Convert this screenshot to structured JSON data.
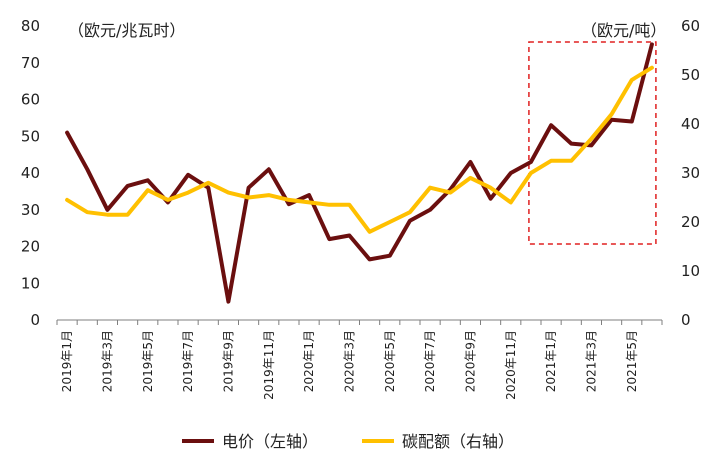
{
  "chart_data": {
    "type": "line",
    "title": "",
    "x": [
      "2019年1月",
      "2019年2月",
      "2019年3月",
      "2019年4月",
      "2019年5月",
      "2019年6月",
      "2019年7月",
      "2019年8月",
      "2019年9月",
      "2019年10月",
      "2019年11月",
      "2019年12月",
      "2020年1月",
      "2020年2月",
      "2020年3月",
      "2020年4月",
      "2020年5月",
      "2020年6月",
      "2020年7月",
      "2020年8月",
      "2020年9月",
      "2020年10月",
      "2020年11月",
      "2020年12月",
      "2021年1月",
      "2021年2月",
      "2021年3月",
      "2021年4月",
      "2021年5月",
      "2021年6月"
    ],
    "x_tick_labels": [
      "2019年1月",
      "2019年3月",
      "2019年5月",
      "2019年7月",
      "2019年9月",
      "2019年11月",
      "2020年1月",
      "2020年3月",
      "2020年5月",
      "2020年7月",
      "2020年9月",
      "2020年11月",
      "2021年1月",
      "2021年3月",
      "2021年5月"
    ],
    "series": [
      {
        "name": "电价（左轴）",
        "axis": "left",
        "color": "#6b0f0f",
        "values": [
          51,
          41,
          30,
          36.5,
          38,
          32,
          39.5,
          36,
          5,
          36,
          41,
          31.5,
          34,
          22,
          23,
          16.5,
          17.5,
          27,
          30,
          35.5,
          43,
          33,
          40,
          43,
          53,
          48,
          47.5,
          54.5,
          54,
          75
        ]
      },
      {
        "name": "碳配额（右轴）",
        "axis": "right",
        "color": "#ffc000",
        "values": [
          24.5,
          22,
          21.5,
          21.5,
          26.5,
          24.5,
          26,
          28,
          26,
          25,
          25.5,
          24.5,
          24,
          23.5,
          23.5,
          18,
          20,
          22,
          27,
          26,
          29,
          27,
          24,
          30,
          32.5,
          32.5,
          37,
          42,
          49,
          51.5
        ]
      }
    ],
    "y_left": {
      "label": "（欧元/兆瓦时）",
      "lim": [
        0,
        80
      ],
      "ticks": [
        0,
        10,
        20,
        30,
        40,
        50,
        60,
        70,
        80
      ]
    },
    "y_right": {
      "label": "（欧元/吨）",
      "lim": [
        0,
        60
      ],
      "ticks": [
        0,
        10,
        20,
        30,
        40,
        50,
        60
      ]
    },
    "highlight": {
      "style": "red dashed box",
      "x_from": "2020年12月",
      "x_to": "2021年6月",
      "color": "#e02020"
    },
    "legend": {
      "position": "bottom-center",
      "entries": [
        "电价（左轴）",
        "碳配额（右轴）"
      ]
    }
  }
}
